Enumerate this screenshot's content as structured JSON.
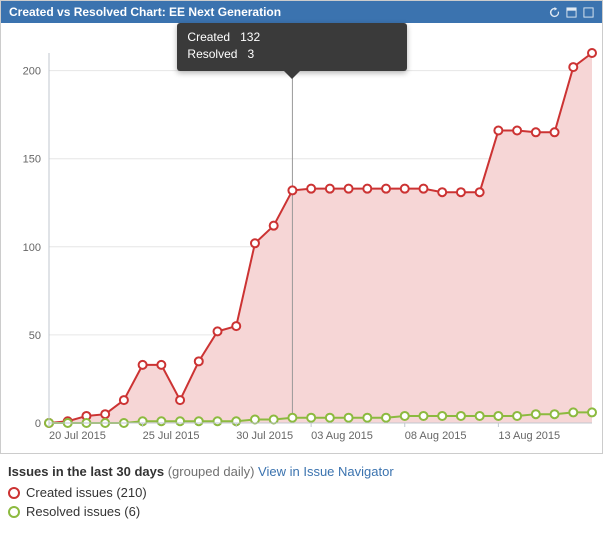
{
  "header": {
    "title": "Created vs Resolved Chart: EE Next Generation"
  },
  "tooltip": {
    "created_label": "Created",
    "created_value": "132",
    "resolved_label": "Resolved",
    "resolved_value": "3"
  },
  "chart": {
    "type": "area-line",
    "background_color": "#ffffff",
    "grid_color": "#e6e6e6",
    "axis_color": "#c0c7cf",
    "tick_font_size": 11,
    "tick_color": "#666666",
    "y": {
      "min": 0,
      "max": 210,
      "ticks": [
        0,
        50,
        100,
        150,
        200
      ]
    },
    "x": {
      "labels": [
        "20 Jul 2015",
        "25 Jul 2015",
        "30 Jul 2015",
        "03 Aug 2015",
        "08 Aug 2015",
        "13 Aug 2015"
      ],
      "label_indices": [
        0,
        5,
        10,
        14,
        19,
        24
      ],
      "count": 30
    },
    "series": {
      "created": {
        "name": "Created",
        "line_color": "#cc3333",
        "fill_color": "#f6d6d6",
        "marker_stroke": "#cc3333",
        "marker_fill": "#ffffff",
        "marker_radius": 4,
        "line_width": 2,
        "values": [
          0,
          1,
          4,
          5,
          13,
          33,
          33,
          13,
          35,
          52,
          55,
          102,
          112,
          132,
          133,
          133,
          133,
          133,
          133,
          133,
          133,
          131,
          131,
          131,
          166,
          166,
          165,
          165,
          202,
          210
        ]
      },
      "resolved": {
        "name": "Resolved",
        "line_color": "#8cba3f",
        "fill_color": "none",
        "marker_stroke": "#8cba3f",
        "marker_fill": "#ffffff",
        "marker_radius": 4,
        "line_width": 2,
        "values": [
          0,
          0,
          0,
          0,
          0,
          1,
          1,
          1,
          1,
          1,
          1,
          2,
          2,
          3,
          3,
          3,
          3,
          3,
          3,
          4,
          4,
          4,
          4,
          4,
          4,
          4,
          5,
          5,
          6,
          6
        ]
      }
    },
    "hover_index": 13
  },
  "footer": {
    "headline_bold": "Issues in the last 30 days",
    "headline_muted": "(grouped daily)",
    "link_text": "View in Issue Navigator",
    "created_legend": "Created issues (210)",
    "resolved_legend": "Resolved issues (6)",
    "created_color": "#cc3333",
    "resolved_color": "#8cba3f"
  }
}
